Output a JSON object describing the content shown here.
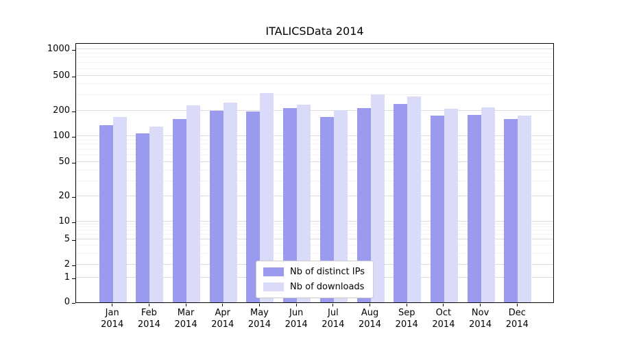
{
  "title": "ITALICSData 2014",
  "colors": {
    "ips_bar": "#9a9aef",
    "downloads_bar": "#dadaf9",
    "grid_major": "#dcdcdc",
    "grid_minor": "#f1f1f1",
    "axis": "#000000",
    "background": "#ffffff"
  },
  "chart_data": {
    "type": "bar",
    "title": "ITALICSData 2014",
    "categories": [
      {
        "month": "Jan",
        "year": "2014"
      },
      {
        "month": "Feb",
        "year": "2014"
      },
      {
        "month": "Mar",
        "year": "2014"
      },
      {
        "month": "Apr",
        "year": "2014"
      },
      {
        "month": "May",
        "year": "2014"
      },
      {
        "month": "Jun",
        "year": "2014"
      },
      {
        "month": "Jul",
        "year": "2014"
      },
      {
        "month": "Aug",
        "year": "2014"
      },
      {
        "month": "Sep",
        "year": "2014"
      },
      {
        "month": "Oct",
        "year": "2014"
      },
      {
        "month": "Nov",
        "year": "2014"
      },
      {
        "month": "Dec",
        "year": "2014"
      }
    ],
    "series": [
      {
        "name": "Nb of distinct IPs",
        "color": "#9a9aef",
        "values": [
          135,
          108,
          160,
          200,
          195,
          215,
          170,
          215,
          240,
          175,
          180,
          160
        ]
      },
      {
        "name": "Nb of downloads",
        "color": "#dadaf9",
        "values": [
          170,
          130,
          230,
          250,
          320,
          235,
          205,
          310,
          290,
          210,
          220,
          175
        ]
      }
    ],
    "yscale": "symlog",
    "yticks": [
      {
        "v": 0,
        "f": 0.0
      },
      {
        "v": 1,
        "f": 0.095
      },
      {
        "v": 2,
        "f": 0.145
      },
      {
        "v": 5,
        "f": 0.242
      },
      {
        "v": 10,
        "f": 0.311
      },
      {
        "v": 20,
        "f": 0.408
      },
      {
        "v": 50,
        "f": 0.539
      },
      {
        "v": 100,
        "f": 0.639
      },
      {
        "v": 200,
        "f": 0.737
      },
      {
        "v": 500,
        "f": 0.871
      },
      {
        "v": 1000,
        "f": 0.974
      }
    ],
    "minor_gridline_values": [
      3,
      4,
      6,
      7,
      8,
      9,
      30,
      40,
      60,
      70,
      80,
      90,
      300,
      400,
      600,
      700,
      800,
      900
    ],
    "legend_position": "lower center",
    "grid": true
  }
}
